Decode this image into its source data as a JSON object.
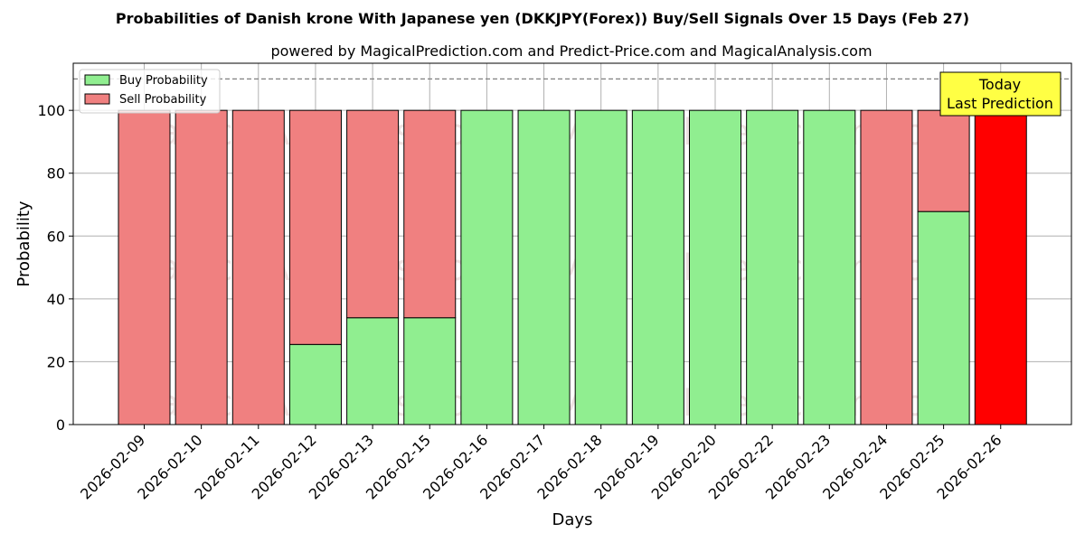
{
  "chart_data": {
    "type": "bar",
    "stacked": true,
    "title": "Probabilities of Danish krone With Japanese yen (DKKJPY(Forex)) Buy/Sell Signals Over 15 Days (Feb 27)",
    "subtitle": "powered by MagicalPrediction.com and Predict-Price.com and MagicalAnalysis.com",
    "xlabel": "Days",
    "ylabel": "Probability",
    "ylim": [
      0,
      115
    ],
    "yticks": [
      0,
      20,
      40,
      60,
      80,
      100
    ],
    "threshold_line": 110,
    "grid": true,
    "legend_position": "top-left",
    "categories": [
      "2026-02-09",
      "2026-02-10",
      "2026-02-11",
      "2026-02-12",
      "2026-02-13",
      "2026-02-15",
      "2026-02-16",
      "2026-02-17",
      "2026-02-18",
      "2026-02-19",
      "2026-02-20",
      "2026-02-22",
      "2026-02-23",
      "2026-02-24",
      "2026-02-25",
      "2026-02-26"
    ],
    "series": [
      {
        "name": "Buy Probability",
        "color": "#90ee90",
        "values": [
          0,
          0,
          0,
          25.5,
          34,
          34,
          100,
          100,
          100,
          100,
          100,
          100,
          100,
          0,
          67.8,
          0
        ]
      },
      {
        "name": "Sell Probability",
        "color": "#f08080",
        "values": [
          100,
          100,
          100,
          74.5,
          66,
          66,
          0,
          0,
          0,
          0,
          0,
          0,
          0,
          100,
          32.2,
          100
        ]
      }
    ],
    "highlight": {
      "index": 15,
      "color": "#ff0000"
    },
    "annotation": {
      "line1": "Today",
      "line2": "Last Prediction",
      "color": "#ffff44"
    },
    "watermarks": [
      "MagicalAnalysis.com",
      "MagicalPrediction.com"
    ]
  }
}
